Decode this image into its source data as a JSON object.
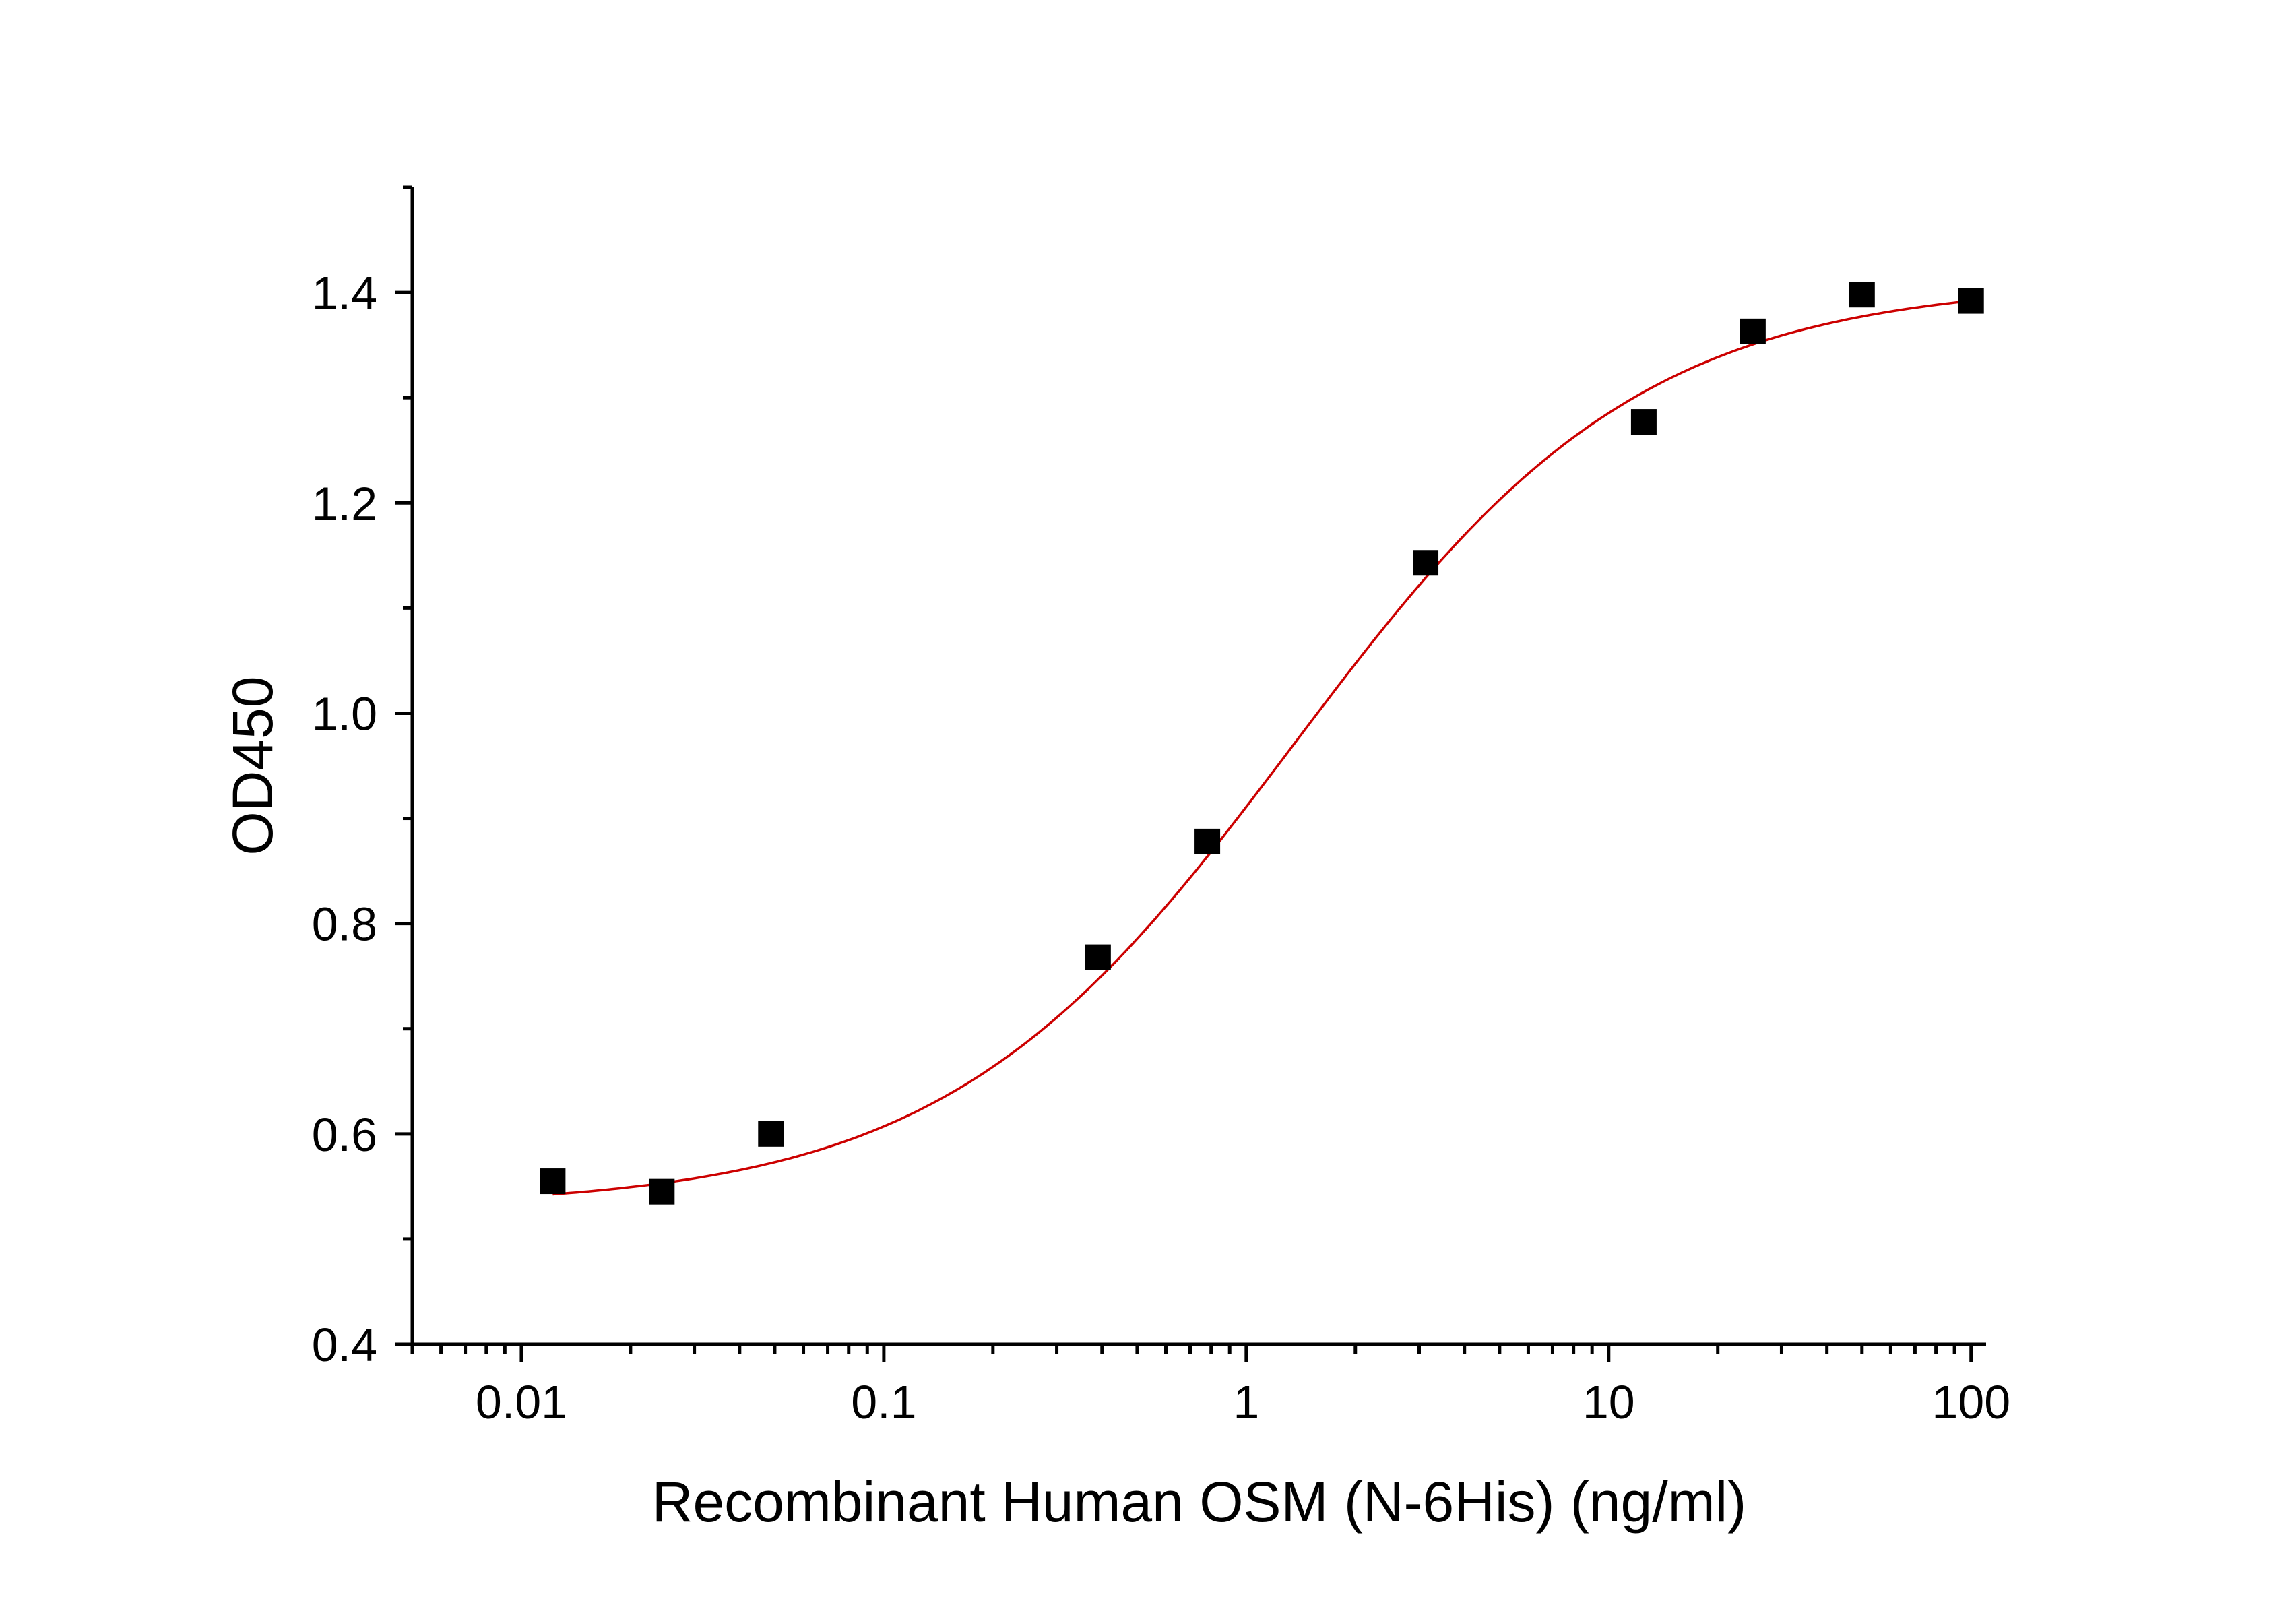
{
  "chart_data": {
    "type": "scatter",
    "xlabel": "Recombinant Human OSM (N-6His) (ng/ml)",
    "ylabel": "OD450",
    "xscale": "log",
    "xlim": [
      0.005,
      110
    ],
    "ylim": [
      0.4,
      1.5
    ],
    "xticks": [
      0.01,
      0.1,
      1,
      10,
      100
    ],
    "xtick_labels": [
      "0.01",
      "0.1",
      "1",
      "10",
      "100"
    ],
    "yticks": [
      0.4,
      0.6,
      0.8,
      1.0,
      1.2,
      1.4
    ],
    "ytick_labels": [
      "0.4",
      "0.6",
      "0.8",
      "1.0",
      "1.2",
      "1.4"
    ],
    "grid": false,
    "legend": "none",
    "series": [
      {
        "marker": "square",
        "color": "#000000",
        "x": [
          0.0122,
          0.0244,
          0.0488,
          0.39,
          0.781,
          3.125,
          12.5,
          25,
          50,
          100
        ],
        "y": [
          0.555,
          0.545,
          0.6,
          0.768,
          0.878,
          1.143,
          1.277,
          1.363,
          1.398,
          1.392
        ]
      }
    ],
    "fit": {
      "model": "4PL",
      "color": "#cc0000",
      "bottom": 0.53,
      "top": 1.41,
      "ec50": 1.35,
      "hill": 0.9
    }
  }
}
